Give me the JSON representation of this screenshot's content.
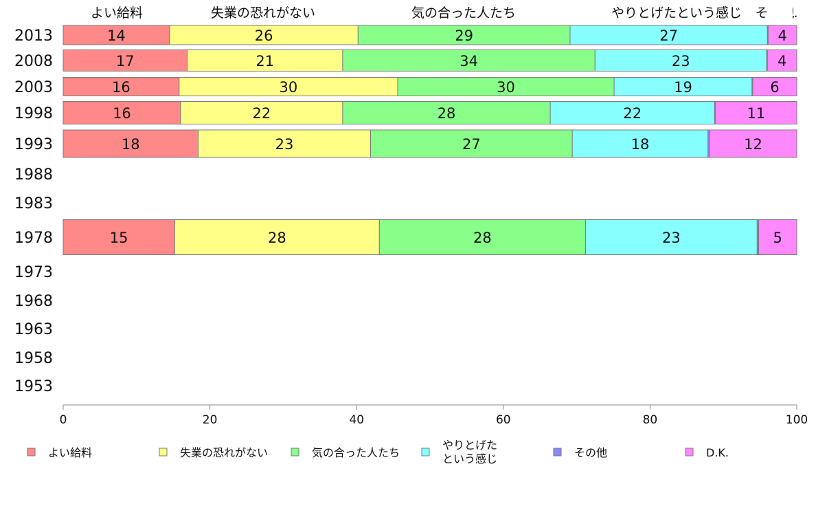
{
  "chart_data": {
    "type": "bar",
    "orientation": "horizontal",
    "stacked": true,
    "categories": [
      "2013",
      "2008",
      "2003",
      "1998",
      "1993",
      "1988",
      "1983",
      "1978",
      "1973",
      "1968",
      "1963",
      "1958",
      "1953"
    ],
    "series": [
      {
        "name": "よい給料",
        "color": "#ff8888",
        "values": [
          14.5,
          16.9,
          15.8,
          16.0,
          18.4,
          null,
          null,
          15.2,
          null,
          null,
          null,
          null,
          null
        ],
        "labels": [
          "14",
          "17",
          "16",
          "16",
          "18",
          "",
          "",
          "15",
          "",
          "",
          "",
          "",
          ""
        ]
      },
      {
        "name": "失業の恐れがない",
        "color": "#ffff88",
        "values": [
          25.7,
          21.2,
          29.8,
          22.1,
          23.5,
          null,
          null,
          27.9,
          null,
          null,
          null,
          null,
          null
        ],
        "labels": [
          "26",
          "21",
          "30",
          "22",
          "23",
          "",
          "",
          "28",
          "",
          "",
          "",
          "",
          ""
        ]
      },
      {
        "name": "気の合った人たち",
        "color": "#88ff88",
        "values": [
          28.9,
          34.4,
          29.5,
          28.3,
          27.5,
          null,
          null,
          28.1,
          null,
          null,
          null,
          null,
          null
        ],
        "labels": [
          "29",
          "34",
          "30",
          "28",
          "27",
          "",
          "",
          "28",
          "",
          "",
          "",
          "",
          ""
        ]
      },
      {
        "name": "やりとげたという感じ",
        "legend_lines": [
          "やりとげた",
          "という感じ"
        ],
        "color": "#88ffff",
        "values": [
          26.9,
          23.4,
          18.8,
          22.4,
          18.5,
          null,
          null,
          23.4,
          null,
          null,
          null,
          null,
          null
        ],
        "labels": [
          "27",
          "23",
          "19",
          "22",
          "18",
          "",
          "",
          "23",
          "",
          "",
          "",
          "",
          ""
        ]
      },
      {
        "name": "その他",
        "color": "#8888ff",
        "values": [
          0.1,
          0.1,
          0.1,
          0.1,
          0.2,
          null,
          null,
          0.2,
          null,
          null,
          null,
          null,
          null
        ],
        "labels": [
          "",
          "",
          "",
          "",
          "",
          "",
          "",
          "",
          "",
          "",
          "",
          "",
          ""
        ]
      },
      {
        "name": "D.K.",
        "color": "#ff88ff",
        "values": [
          3.9,
          4.0,
          6.0,
          11.1,
          11.9,
          null,
          null,
          5.2,
          null,
          null,
          null,
          null,
          null
        ],
        "labels": [
          "4",
          "4",
          "6",
          "11",
          "12",
          "",
          "",
          "5",
          "",
          "",
          "",
          "",
          ""
        ]
      }
    ],
    "top_labels": [
      "よい給料",
      "失業の恐れがない",
      "気の合った人たち",
      "やりとげたという感じ",
      "その他",
      "D.K."
    ],
    "xlim": [
      0,
      100
    ],
    "xticks": [
      "0",
      "20",
      "40",
      "60",
      "80",
      "100"
    ],
    "legend": "bottom",
    "grid": false
  }
}
